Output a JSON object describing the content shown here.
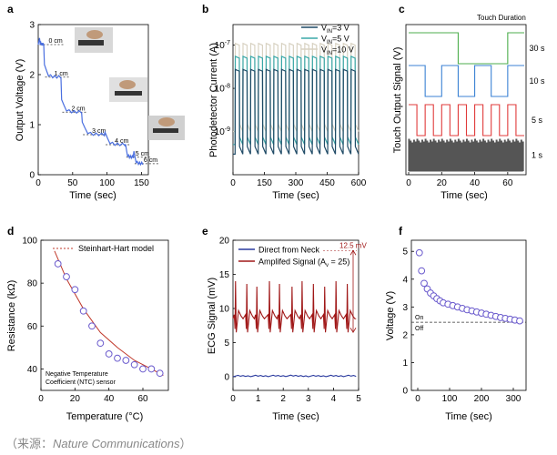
{
  "source": {
    "prefix": "（来源：",
    "journal": "Nature Communications",
    "suffix": "）"
  },
  "chart_data": [
    {
      "panel": "a",
      "type": "line",
      "xlabel": "Time (sec)",
      "ylabel": "Output Voltage (V)",
      "xlim": [
        0,
        160
      ],
      "ylim": [
        0,
        3
      ],
      "xticks": [
        0,
        50,
        100,
        150
      ],
      "yticks": [
        0,
        1,
        2,
        3
      ],
      "color": "#4a6fe0",
      "steps": [
        {
          "label": "0 cm",
          "x0": 0,
          "x1": 8,
          "v": 2.6
        },
        {
          "label": "1 cm",
          "x0": 8,
          "x1": 33,
          "v": 1.95
        },
        {
          "label": "2 cm",
          "x0": 33,
          "x1": 63,
          "v": 1.25
        },
        {
          "label": "3 cm",
          "x0": 63,
          "x1": 96,
          "v": 0.8
        },
        {
          "label": "4 cm",
          "x0": 96,
          "x1": 126,
          "v": 0.6
        },
        {
          "label": "5 cm",
          "x0": 126,
          "x1": 138,
          "v": 0.35
        },
        {
          "label": "6 cm",
          "x0": 138,
          "x1": 152,
          "v": 0.22
        }
      ]
    },
    {
      "panel": "b",
      "type": "line",
      "yscale": "log",
      "xlabel": "Time (sec)",
      "ylabel": "Photodetector Current (A)",
      "xlim": [
        0,
        600
      ],
      "ylim": [
        1e-10,
        3e-07
      ],
      "xticks": [
        0,
        150,
        300,
        450,
        600
      ],
      "yticks": [
        {
          "base": "10",
          "exp": "-9",
          "value": 1e-09
        },
        {
          "base": "10",
          "exp": "-8",
          "value": 1e-08
        },
        {
          "base": "10",
          "exp": "-7",
          "value": 1e-07
        }
      ],
      "pulse_count": 16,
      "series": [
        {
          "name": "V",
          "sub": "IN",
          "rest": "=3 V",
          "color": "#1f4a66",
          "on": 2.5e-08,
          "off": 3e-10
        },
        {
          "name": "V",
          "sub": "IN",
          "rest": "=5 V",
          "color": "#3aa8a8",
          "on": 5e-08,
          "off": 5e-10
        },
        {
          "name": "V",
          "sub": "IN",
          "rest": "=10 V",
          "color": "#d8d2c2",
          "on": 1e-07,
          "off": 1e-09
        }
      ]
    },
    {
      "panel": "c",
      "type": "line",
      "xlabel": "Time (sec)",
      "ylabel": "Touch Output Signal (V)",
      "xlim": [
        0,
        70
      ],
      "xticks": [
        0,
        20,
        40,
        60
      ],
      "legend_title": "Touch Duration",
      "traces": [
        {
          "label": "30 s",
          "color": "#4cae4c",
          "period": 60
        },
        {
          "label": "10 s",
          "color": "#3b82d4",
          "period": 20
        },
        {
          "label": "5 s",
          "color": "#e03b3b",
          "period": 10
        },
        {
          "label": "1 s",
          "color": "#555555",
          "period": 2
        }
      ]
    },
    {
      "panel": "d",
      "type": "scatter",
      "xlabel": "Temperature (°C)",
      "ylabel": "Resistance (kΩ)",
      "xlim": [
        0,
        75
      ],
      "ylim": [
        30,
        100
      ],
      "xticks": [
        0,
        20,
        40,
        60
      ],
      "yticks": [
        40,
        60,
        80,
        100
      ],
      "model_label": "Steinhart-Hart model",
      "sensor_note_1": "Negative Temperature",
      "sensor_note_2": "Coefficient (NTC) sensor",
      "points": [
        [
          10,
          89
        ],
        [
          15,
          83
        ],
        [
          20,
          77
        ],
        [
          25,
          67
        ],
        [
          30,
          60
        ],
        [
          35,
          52
        ],
        [
          40,
          47
        ],
        [
          45,
          45
        ],
        [
          50,
          44
        ],
        [
          55,
          42
        ],
        [
          60,
          40
        ],
        [
          65,
          40
        ],
        [
          70,
          38
        ]
      ],
      "model": [
        [
          8,
          95
        ],
        [
          15,
          82
        ],
        [
          25,
          68
        ],
        [
          35,
          57
        ],
        [
          45,
          50
        ],
        [
          55,
          44
        ],
        [
          65,
          40
        ],
        [
          72,
          37
        ]
      ]
    },
    {
      "panel": "e",
      "type": "line",
      "xlabel": "Time (sec)",
      "ylabel": "ECG Signal (mV)",
      "xlim": [
        0,
        5
      ],
      "ylim": [
        -2,
        20
      ],
      "xticks": [
        0,
        1,
        2,
        3,
        4,
        5
      ],
      "yticks": [
        0,
        5,
        10,
        15,
        20
      ],
      "annotation": "12.5 mV",
      "beats": [
        0.1,
        0.55,
        0.95,
        1.45,
        1.85,
        2.35,
        2.75,
        3.2,
        3.65,
        4.1,
        4.55
      ],
      "series": [
        {
          "name": "Direct from Neck",
          "color": "#2a3a9e",
          "baseline": 0
        },
        {
          "name": "Amplifed Signal (A",
          "sub": "v",
          "rest": " = 25)",
          "color": "#a01818",
          "baseline": 8.5,
          "peak": 14
        }
      ]
    },
    {
      "panel": "f",
      "type": "scatter",
      "xlabel": "Time (sec)",
      "ylabel": "Voltage (V)",
      "xlim": [
        -20,
        340
      ],
      "ylim": [
        0,
        5.4
      ],
      "xticks": [
        0,
        100,
        200,
        300
      ],
      "yticks": [
        0,
        1,
        2,
        3,
        4,
        5
      ],
      "threshold": 2.45,
      "on_label": "On",
      "off_label": "Off",
      "points": [
        [
          5,
          4.95
        ],
        [
          12,
          4.3
        ],
        [
          20,
          3.85
        ],
        [
          30,
          3.65
        ],
        [
          40,
          3.5
        ],
        [
          50,
          3.4
        ],
        [
          60,
          3.3
        ],
        [
          70,
          3.22
        ],
        [
          80,
          3.15
        ],
        [
          95,
          3.1
        ],
        [
          110,
          3.05
        ],
        [
          125,
          3.0
        ],
        [
          140,
          2.95
        ],
        [
          155,
          2.9
        ],
        [
          170,
          2.86
        ],
        [
          185,
          2.82
        ],
        [
          200,
          2.78
        ],
        [
          215,
          2.74
        ],
        [
          230,
          2.7
        ],
        [
          245,
          2.66
        ],
        [
          260,
          2.62
        ],
        [
          275,
          2.59
        ],
        [
          290,
          2.56
        ],
        [
          305,
          2.53
        ],
        [
          320,
          2.5
        ]
      ]
    }
  ]
}
